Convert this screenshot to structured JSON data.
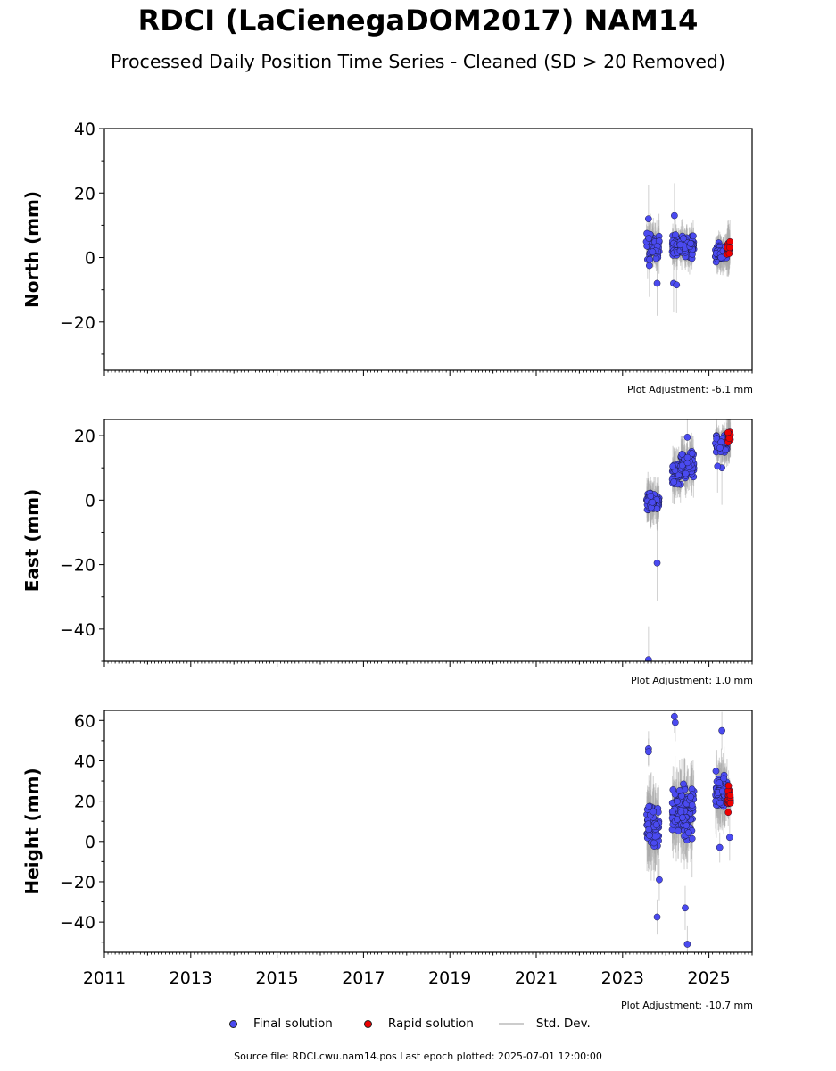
{
  "title": "RDCI (LaCienegaDOM2017) NAM14",
  "subtitle": "Processed Daily Position Time Series - Cleaned (SD > 20 Removed)",
  "colors": {
    "final": "#4a4af0",
    "rapid": "#ee0000",
    "std": "#aaaaaa"
  },
  "legend": {
    "final": "Final solution",
    "rapid": "Rapid solution",
    "std": "Std. Dev."
  },
  "source": "Source file: RDCI.cwu.nam14.pos  Last epoch plotted: 2025-07-01 12:00:00",
  "chart_data": [
    {
      "type": "scatter",
      "ylabel": "North (mm)",
      "xlim": [
        2011,
        2026
      ],
      "ylim": [
        -35,
        40
      ],
      "yticks": [
        -20,
        0,
        20,
        40
      ],
      "adjustment": "Plot Adjustment: -6.1 mm",
      "clusters": [
        {
          "x": [
            2023.55,
            2023.85
          ],
          "center": 3.5,
          "spread": 5.5,
          "err": 5
        },
        {
          "x": [
            2024.15,
            2024.65
          ],
          "center": 3.5,
          "spread": 5,
          "err": 4
        },
        {
          "x": [
            2025.15,
            2025.42
          ],
          "center": 1.5,
          "spread": 3.5,
          "err": 4
        }
      ],
      "rapid": {
        "x": [
          2025.42,
          2025.5
        ],
        "center": 2.5,
        "spread": 3
      },
      "outliers": [
        {
          "x": 2023.6,
          "y": 12
        },
        {
          "x": 2023.62,
          "y": -2.5
        },
        {
          "x": 2023.8,
          "y": -8
        },
        {
          "x": 2024.2,
          "y": 13
        },
        {
          "x": 2024.18,
          "y": -8
        },
        {
          "x": 2024.25,
          "y": -8.5
        }
      ]
    },
    {
      "type": "scatter",
      "ylabel": "East (mm)",
      "xlim": [
        2011,
        2026
      ],
      "ylim": [
        -50,
        25
      ],
      "yticks": [
        -40,
        -20,
        0,
        20
      ],
      "adjustment": "Plot Adjustment: 1.0 mm",
      "clusters": [
        {
          "x": [
            2023.55,
            2023.85
          ],
          "center": -0.5,
          "spread": 3.5,
          "err": 5
        },
        {
          "x": [
            2024.15,
            2024.35
          ],
          "center": 8,
          "spread": 5,
          "err": 5
        },
        {
          "x": [
            2024.35,
            2024.65
          ],
          "center": 11,
          "spread": 6,
          "err": 5
        },
        {
          "x": [
            2025.15,
            2025.42
          ],
          "center": 17,
          "spread": 4,
          "err": 4
        }
      ],
      "rapid": {
        "x": [
          2025.42,
          2025.5
        ],
        "center": 20,
        "spread": 3.5
      },
      "outliers": [
        {
          "x": 2023.8,
          "y": -19.5
        },
        {
          "x": 2023.6,
          "y": -49.5
        },
        {
          "x": 2024.5,
          "y": 19.5
        },
        {
          "x": 2025.3,
          "y": 10
        },
        {
          "x": 2025.2,
          "y": 10.5
        }
      ]
    },
    {
      "type": "scatter",
      "ylabel": "Height (mm)",
      "xlim": [
        2011,
        2026
      ],
      "ylim": [
        -55,
        65
      ],
      "yticks": [
        -40,
        -20,
        0,
        20,
        40,
        60
      ],
      "xticks": [
        2011,
        2013,
        2015,
        2017,
        2019,
        2021,
        2023,
        2025
      ],
      "adjustment": "Plot Adjustment: -10.7 mm",
      "clusters": [
        {
          "x": [
            2023.55,
            2023.85
          ],
          "center": 8,
          "spread": 14,
          "err": 14
        },
        {
          "x": [
            2024.15,
            2024.65
          ],
          "center": 15,
          "spread": 16,
          "err": 14
        },
        {
          "x": [
            2025.15,
            2025.42
          ],
          "center": 25,
          "spread": 11,
          "err": 12
        }
      ],
      "rapid": {
        "x": [
          2025.42,
          2025.5
        ],
        "center": 22,
        "spread": 9
      },
      "outliers": [
        {
          "x": 2023.6,
          "y": 46
        },
        {
          "x": 2023.6,
          "y": 44.5
        },
        {
          "x": 2023.8,
          "y": -37.5
        },
        {
          "x": 2023.85,
          "y": -19
        },
        {
          "x": 2024.2,
          "y": 62
        },
        {
          "x": 2024.22,
          "y": 59
        },
        {
          "x": 2024.45,
          "y": -33
        },
        {
          "x": 2024.5,
          "y": -51
        },
        {
          "x": 2025.25,
          "y": -3
        },
        {
          "x": 2025.3,
          "y": 55
        },
        {
          "x": 2025.48,
          "y": 2
        }
      ]
    }
  ]
}
